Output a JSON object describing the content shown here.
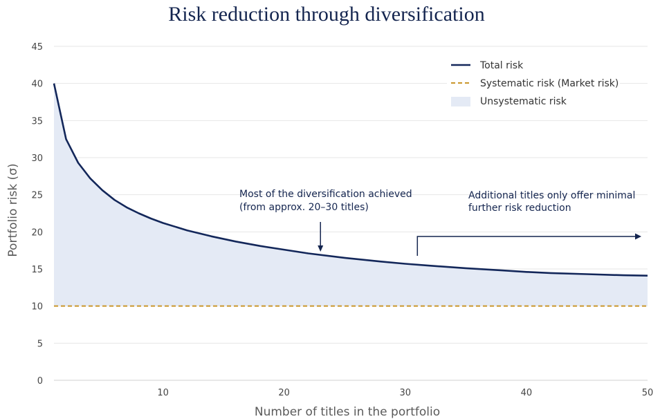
{
  "chart_data": {
    "type": "line",
    "title": "Risk reduction through diversification",
    "xlabel": "Number of titles in the portfolio",
    "ylabel": "Portfolio risk (σ)",
    "xlim": [
      1,
      50
    ],
    "ylim": [
      0,
      45
    ],
    "x_ticks": [
      10,
      20,
      30,
      40,
      50
    ],
    "y_ticks": [
      0,
      5,
      10,
      15,
      20,
      25,
      30,
      35,
      40,
      45
    ],
    "grid": "horizontal",
    "legend_position": "top-right",
    "series": [
      {
        "name": "Total risk",
        "style": "solid",
        "color": "#13275a",
        "x": [
          1,
          2,
          3,
          4,
          5,
          6,
          7,
          8,
          9,
          10,
          12,
          14,
          16,
          18,
          20,
          22,
          25,
          28,
          30,
          32,
          35,
          38,
          40,
          42,
          45,
          48,
          50
        ],
        "y": [
          40.0,
          32.5,
          29.3,
          27.2,
          25.6,
          24.3,
          23.3,
          22.5,
          21.8,
          21.2,
          20.2,
          19.4,
          18.7,
          18.1,
          17.6,
          17.1,
          16.5,
          16.0,
          15.7,
          15.45,
          15.1,
          14.8,
          14.6,
          14.45,
          14.3,
          14.15,
          14.1
        ]
      },
      {
        "name": "Systematic risk (Market risk)",
        "style": "dashed",
        "color": "#c9962a",
        "x": [
          1,
          50
        ],
        "y": [
          10,
          10
        ]
      }
    ],
    "area": {
      "name": "Unsystematic risk",
      "color": "#e4eaf5",
      "between": [
        "Total risk",
        "Systematic risk (Market risk)"
      ]
    },
    "annotations": [
      {
        "lines": [
          "Most of the diversification achieved",
          "(from approx. 20–30 titles)"
        ],
        "arrow_x": 23
      },
      {
        "lines": [
          "Additional titles only offer minimal",
          "further risk reduction"
        ],
        "arrow_from_x": 31,
        "arrow_to_x": 50
      }
    ]
  }
}
